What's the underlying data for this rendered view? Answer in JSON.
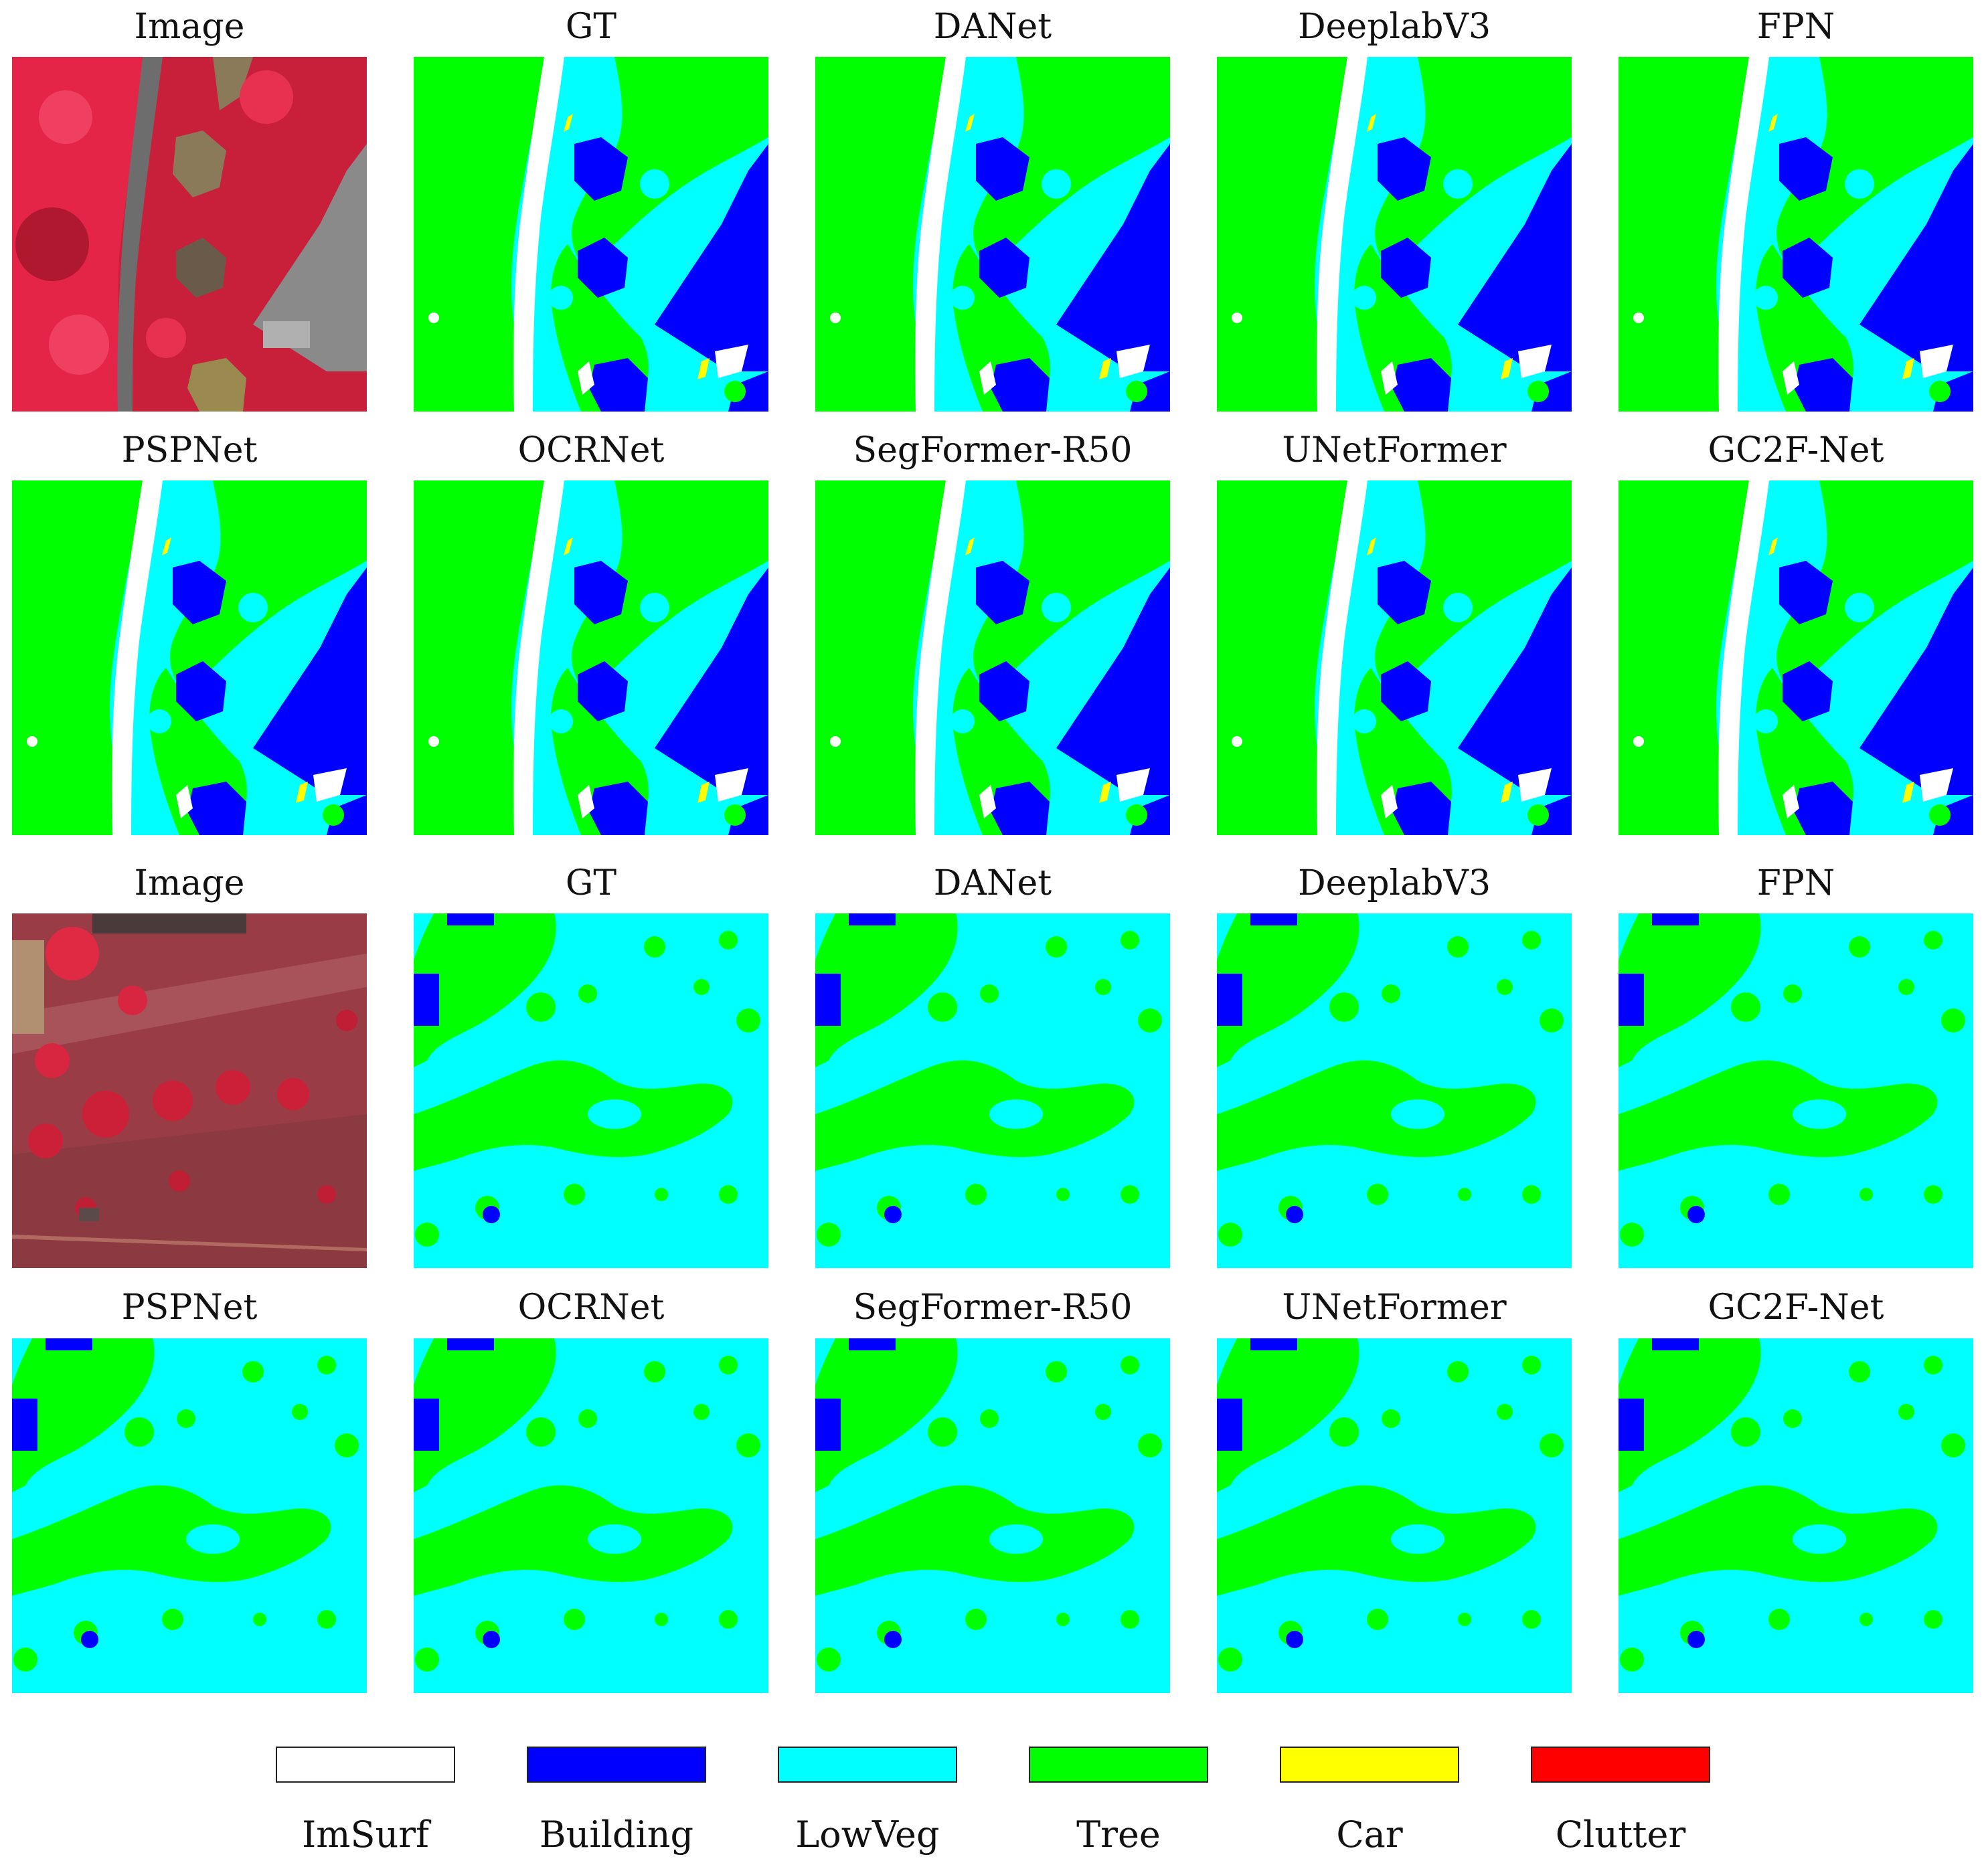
{
  "figure": {
    "blocks": [
      {
        "id": "upper",
        "row1_labels": [
          "Image",
          "GT",
          "DANet",
          "DeeplabV3",
          "FPN"
        ],
        "row2_labels": [
          "PSPNet",
          "OCRNet",
          "SegFormer-R50",
          "UNetFormer",
          "GC2F-Net"
        ]
      },
      {
        "id": "lower",
        "row1_labels": [
          "Image",
          "GT",
          "DANet",
          "DeeplabV3",
          "FPN"
        ],
        "row2_labels": [
          "PSPNet",
          "OCRNet",
          "SegFormer-R50",
          "UNetFormer",
          "GC2F-Net"
        ]
      }
    ],
    "legend": [
      {
        "name": "ImSurf",
        "color": "#ffffff"
      },
      {
        "name": "Building",
        "color": "#0000ff"
      },
      {
        "name": "LowVeg",
        "color": "#00ffff"
      },
      {
        "name": "Tree",
        "color": "#00ff00"
      },
      {
        "name": "Car",
        "color": "#ffff00"
      },
      {
        "name": "Clutter",
        "color": "#ff0000"
      }
    ]
  }
}
